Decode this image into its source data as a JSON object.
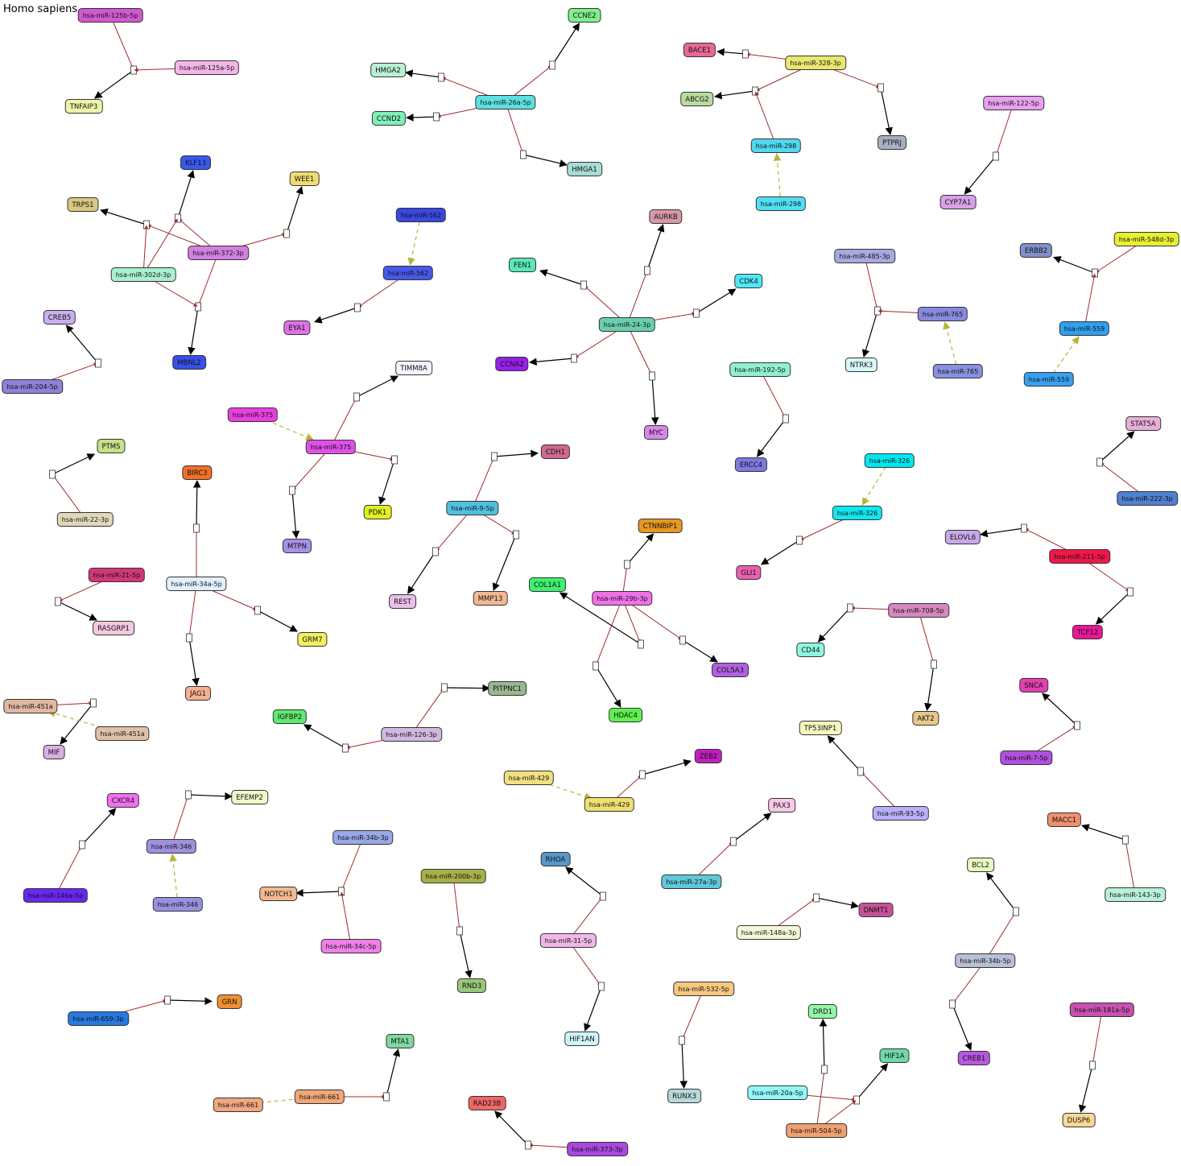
{
  "title": "Homo sapiens",
  "nodes": {
    "mir125b": {
      "label": "hsa-miR-125b-5p",
      "color": "#d05ad0"
    },
    "mir125a": {
      "label": "hsa-miR-125a-5p",
      "color": "#f4b6e8"
    },
    "TNFAIP3": {
      "label": "TNFAIP3",
      "color": "#eef5a8"
    },
    "CCNE2": {
      "label": "CCNE2",
      "color": "#7ef08c"
    },
    "HMGA2": {
      "label": "HMGA2",
      "color": "#b8f0d4"
    },
    "CCND2": {
      "label": "CCND2",
      "color": "#7ef0b8"
    },
    "mir26a": {
      "label": "hsa-miR-26a-5p",
      "color": "#5ce0e0"
    },
    "HMGA1": {
      "label": "HMGA1",
      "color": "#a8dcd8"
    },
    "BACE1": {
      "label": "BACE1",
      "color": "#e86898"
    },
    "ABCG2": {
      "label": "ABCG2",
      "color": "#b8dca0"
    },
    "mir328": {
      "label": "hsa-miR-328-3p",
      "color": "#e8e870"
    },
    "mir298a": {
      "label": "hsa-miR-298",
      "color": "#50d8f0"
    },
    "mir298b": {
      "label": "hsa-miR-298",
      "color": "#50e0f4"
    },
    "PTPRJ": {
      "label": "PTPRJ",
      "color": "#a8b0c0"
    },
    "mir122": {
      "label": "hsa-miR-122-5p",
      "color": "#e8a0f0"
    },
    "CYP7A1": {
      "label": "CYP7A1",
      "color": "#d8a0e8"
    },
    "KLF13": {
      "label": "KLF13",
      "color": "#3858f0"
    },
    "WEE1": {
      "label": "WEE1",
      "color": "#f0dc70"
    },
    "TRPS1": {
      "label": "TRPS1",
      "color": "#d8c880"
    },
    "mir372": {
      "label": "hsa-miR-372-3p",
      "color": "#d080e0"
    },
    "mir302d": {
      "label": "hsa-miR-302d-3p",
      "color": "#a8f0d0"
    },
    "MBNL2": {
      "label": "MBNL2",
      "color": "#3850e8"
    },
    "mir562a": {
      "label": "hsa-miR-562",
      "color": "#3848e0"
    },
    "mir562b": {
      "label": "hsa-miR-562",
      "color": "#4858e8"
    },
    "EYA1": {
      "label": "EYA1",
      "color": "#e070e8"
    },
    "AURKB": {
      "label": "AURKB",
      "color": "#d898a8"
    },
    "FEN1": {
      "label": "FEN1",
      "color": "#58e8b8"
    },
    "CDK4": {
      "label": "CDK4",
      "color": "#50e8f8"
    },
    "mir24": {
      "label": "hsa-miR-24-3p",
      "color": "#68d0b0"
    },
    "CCNA2": {
      "label": "CCNA2",
      "color": "#9820e8"
    },
    "MYC": {
      "label": "MYC",
      "color": "#d888e8"
    },
    "mir485": {
      "label": "hsa-miR-485-3p",
      "color": "#a8a8e0"
    },
    "mir765a": {
      "label": "hsa-miR-765",
      "color": "#8888e0"
    },
    "mir765b": {
      "label": "hsa-miR-765",
      "color": "#8890e0"
    },
    "NTRK3": {
      "label": "NTRK3",
      "color": "#d8f8f8"
    },
    "ERBB2": {
      "label": "ERBB2",
      "color": "#8090c8"
    },
    "mir548d": {
      "label": "hsa-miR-548d-3p",
      "color": "#e8f030"
    },
    "mir559a": {
      "label": "hsa-miR-559",
      "color": "#30a0f0"
    },
    "mir559b": {
      "label": "hsa-miR-559",
      "color": "#38a0f0"
    },
    "CREB5": {
      "label": "CREB5",
      "color": "#c8b0f0"
    },
    "mir204": {
      "label": "hsa-miR-204-5p",
      "color": "#9080d8"
    },
    "TIMM8A": {
      "label": "TIMM8A",
      "color": "#f4f4fc"
    },
    "mir375a": {
      "label": "hsa-miR-375",
      "color": "#e840e0"
    },
    "mir375b": {
      "label": "hsa-miR-375",
      "color": "#e050e8"
    },
    "PDK1": {
      "label": "PDK1",
      "color": "#e0f020"
    },
    "MTPN": {
      "label": "MTPN",
      "color": "#a890e8"
    },
    "mir192": {
      "label": "hsa-miR-192-5p",
      "color": "#90f0d0"
    },
    "ERCC4": {
      "label": "ERCC4",
      "color": "#8078e0"
    },
    "STAT5A": {
      "label": "STAT5A",
      "color": "#e8b0d8"
    },
    "mir222": {
      "label": "hsa-miR-222-3p",
      "color": "#5080d0"
    },
    "PTMS": {
      "label": "PTMS",
      "color": "#c8e088"
    },
    "mir22": {
      "label": "hsa-miR-22-3p",
      "color": "#e0d8b8"
    },
    "BIRC3": {
      "label": "BIRC3",
      "color": "#f07028"
    },
    "CDH1": {
      "label": "CDH1",
      "color": "#d06890"
    },
    "mir9": {
      "label": "hsa-miR-9-5p",
      "color": "#50c0e0"
    },
    "REST": {
      "label": "REST",
      "color": "#e8c0e8"
    },
    "MMP13": {
      "label": "MMP13",
      "color": "#f4b890"
    },
    "mir326a": {
      "label": "hsa-miR-326",
      "color": "#00e8f0"
    },
    "mir326b": {
      "label": "hsa-miR-326",
      "color": "#10e8f0"
    },
    "GLI1": {
      "label": "GLI1",
      "color": "#e860b0"
    },
    "ELOVL6": {
      "label": "ELOVL6",
      "color": "#c8a8e8"
    },
    "mir211": {
      "label": "hsa-miR-211-5p",
      "color": "#f01848"
    },
    "TCF12": {
      "label": "TCF12",
      "color": "#e81898"
    },
    "CTNNBIP1": {
      "label": "CTNNBIP1",
      "color": "#e89820"
    },
    "mir21": {
      "label": "hsa-miR-21-5p",
      "color": "#d03878"
    },
    "RASGRP1": {
      "label": "RASGRP1",
      "color": "#f4c8e0"
    },
    "mir34a": {
      "label": "hsa-miR-34a-5p",
      "color": "#e0f0fc"
    },
    "GRM7": {
      "label": "GRM7",
      "color": "#f0f060"
    },
    "JAG1": {
      "label": "JAG1",
      "color": "#f4b090"
    },
    "COL1A1": {
      "label": "COL1A1",
      "color": "#40f070"
    },
    "mir29b": {
      "label": "hsa-miR-29b-3p",
      "color": "#f070e8"
    },
    "COL5A3": {
      "label": "COL5A3",
      "color": "#b060e0"
    },
    "HDAC4": {
      "label": "HDAC4",
      "color": "#60f050"
    },
    "CD44": {
      "label": "CD44",
      "color": "#90f8e0"
    },
    "mir708": {
      "label": "hsa-miR-708-5p",
      "color": "#d888c0"
    },
    "AKT2": {
      "label": "AKT2",
      "color": "#e8c888"
    },
    "mir451a_1": {
      "label": "hsa-miR-451a",
      "color": "#e0b8a0"
    },
    "mir451a_2": {
      "label": "hsa-miR-451a",
      "color": "#e0c0a8"
    },
    "MIF": {
      "label": "MIF",
      "color": "#d8b0e0"
    },
    "IGFBP2": {
      "label": "IGFBP2",
      "color": "#60e870"
    },
    "mir126": {
      "label": "hsa-miR-126-3p",
      "color": "#d0b8e0"
    },
    "PITPNC1": {
      "label": "PITPNC1",
      "color": "#98b890"
    },
    "TP53INP1": {
      "label": "TP53INP1",
      "color": "#f4f8c0"
    },
    "SNCA": {
      "label": "SNCA",
      "color": "#e040b0"
    },
    "mir7": {
      "label": "hsa-miR-7-5p",
      "color": "#b050e0"
    },
    "ZEB2": {
      "label": "ZEB2",
      "color": "#c020c0"
    },
    "mir429a": {
      "label": "hsa-miR-429",
      "color": "#f0e080"
    },
    "mir429b": {
      "label": "hsa-miR-429",
      "color": "#f0e070"
    },
    "mir93": {
      "label": "hsa-miR-93-5p",
      "color": "#b8b0f8"
    },
    "CXCR4": {
      "label": "CXCR4",
      "color": "#f070f0"
    },
    "EFEMP2": {
      "label": "EFEMP2",
      "color": "#eef8c8"
    },
    "mir346a": {
      "label": "hsa-miR-346",
      "color": "#a090e0"
    },
    "mir346b": {
      "label": "hsa-miR-346",
      "color": "#9890e0"
    },
    "mir146a": {
      "label": "hsa-miR-146a-5p",
      "color": "#6828f0"
    },
    "mir34b3p": {
      "label": "hsa-miR-34b-3p",
      "color": "#98a8e8"
    },
    "NOTCH1": {
      "label": "NOTCH1",
      "color": "#f4b890"
    },
    "mir34c": {
      "label": "hsa-miR-34c-5p",
      "color": "#f080e8"
    },
    "mir200b": {
      "label": "hsa-miR-200b-3p",
      "color": "#a8b048"
    },
    "RND3": {
      "label": "RND3",
      "color": "#98c878"
    },
    "RHOA": {
      "label": "RHOA",
      "color": "#5898c8"
    },
    "mir31": {
      "label": "hsa-miR-31-5p",
      "color": "#f0b8e8"
    },
    "HIF1AN": {
      "label": "HIF1AN",
      "color": "#d0f4f8"
    },
    "PAX3": {
      "label": "PAX3",
      "color": "#f8c8e8"
    },
    "mir27a": {
      "label": "hsa-miR-27a-3p",
      "color": "#60c8d8"
    },
    "mir148a": {
      "label": "hsa-miR-148a-3p",
      "color": "#f4f8d8"
    },
    "DNMT1": {
      "label": "DNMT1",
      "color": "#c85098"
    },
    "BCL2": {
      "label": "BCL2",
      "color": "#e8f8c0"
    },
    "mir34b5p": {
      "label": "hsa-miR-34b-5p",
      "color": "#b8c0d8"
    },
    "CREB1": {
      "label": "CREB1",
      "color": "#b858e0"
    },
    "MACC1": {
      "label": "MACC1",
      "color": "#f09070"
    },
    "mir143": {
      "label": "hsa-miR-143-3p",
      "color": "#b8f0d8"
    },
    "mir659": {
      "label": "hsa-miR-659-3p",
      "color": "#2878e0"
    },
    "GRN": {
      "label": "GRN",
      "color": "#f09030"
    },
    "mir532": {
      "label": "hsa-miR-532-5p",
      "color": "#f8c880"
    },
    "RUNX3": {
      "label": "RUNX3",
      "color": "#b8d8d8"
    },
    "DRD1": {
      "label": "DRD1",
      "color": "#90f8a8"
    },
    "HIF1A": {
      "label": "HIF1A",
      "color": "#70d8a8"
    },
    "mir20a": {
      "label": "hsa-miR-20a-5p",
      "color": "#90f8f8"
    },
    "mir504": {
      "label": "hsa-miR-504-5p",
      "color": "#f0a070"
    },
    "mir181a": {
      "label": "hsa-miR-181a-5p",
      "color": "#c850b0"
    },
    "DUSP6": {
      "label": "DUSP6",
      "color": "#f8d898"
    },
    "MTA1": {
      "label": "MTA1",
      "color": "#80d8a0"
    },
    "mir661a": {
      "label": "hsa-miR-661",
      "color": "#f0a880"
    },
    "mir661b": {
      "label": "hsa-miR-661",
      "color": "#f0a878"
    },
    "RAD23B": {
      "label": "RAD23B",
      "color": "#f06868"
    },
    "mir373": {
      "label": "hsa-miR-373-3p",
      "color": "#a848e0"
    }
  }
}
